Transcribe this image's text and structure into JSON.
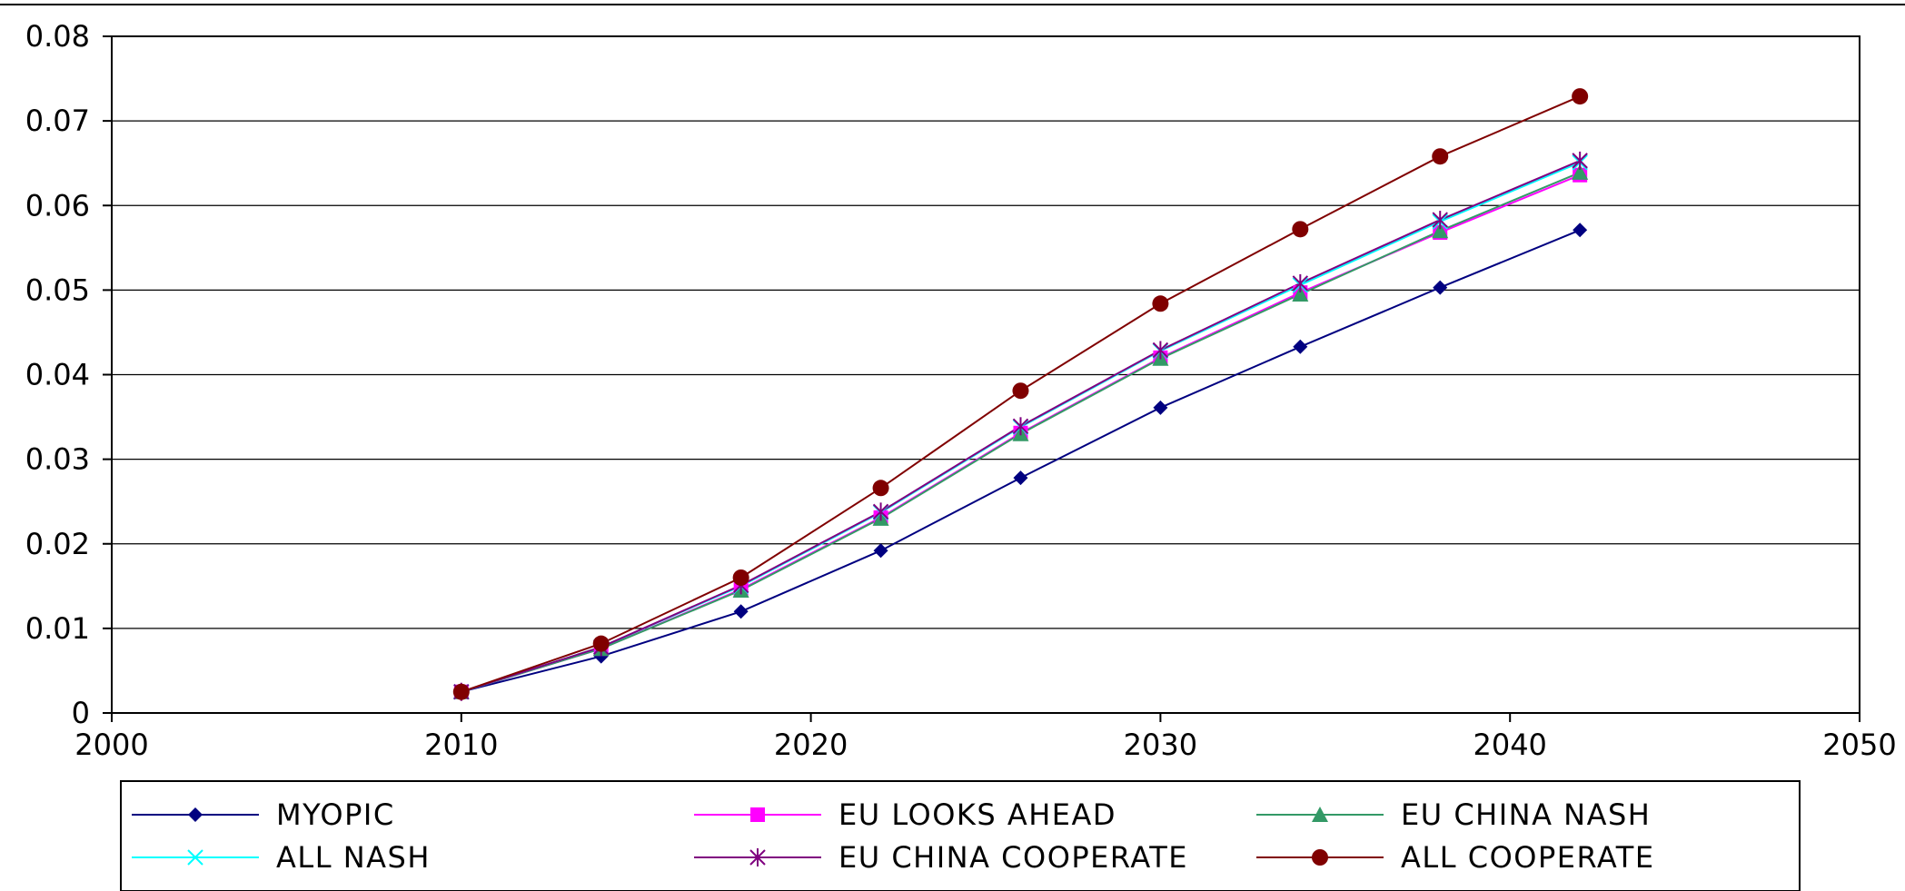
{
  "chart_data": {
    "type": "line",
    "title": "",
    "xlabel": "",
    "ylabel": "",
    "xlim": [
      2000,
      2050
    ],
    "ylim": [
      0,
      0.08
    ],
    "x_ticks": [
      2000,
      2010,
      2020,
      2030,
      2040,
      2050
    ],
    "y_ticks": [
      0,
      0.01,
      0.02,
      0.03,
      0.04,
      0.05,
      0.06,
      0.07,
      0.08
    ],
    "x_tick_labels": [
      "2000",
      "2010",
      "2020",
      "2030",
      "2040",
      "2050"
    ],
    "y_tick_labels": [
      "0",
      "0.01",
      "0.02",
      "0.03",
      "0.04",
      "0.05",
      "0.06",
      "0.07",
      "0.08"
    ],
    "grid": "horizontal major lines",
    "legend_position": "bottom",
    "x": [
      2010,
      2014,
      2018,
      2022,
      2026,
      2030,
      2034,
      2038,
      2042
    ],
    "series": [
      {
        "name": "MYOPIC",
        "color": "#000080",
        "marker": "diamond",
        "values": [
          0.0025,
          0.0067,
          0.012,
          0.0192,
          0.0278,
          0.0361,
          0.0433,
          0.0503,
          0.0571
        ]
      },
      {
        "name": "EU LOOKS AHEAD",
        "color": "#FF00FF",
        "marker": "square",
        "values": [
          0.0025,
          0.0076,
          0.0146,
          0.0231,
          0.0331,
          0.042,
          0.0497,
          0.0568,
          0.0636
        ]
      },
      {
        "name": "EU CHINA NASH",
        "color": "#339966",
        "marker": "triangle",
        "values": [
          0.0025,
          0.0076,
          0.0145,
          0.023,
          0.033,
          0.0419,
          0.0495,
          0.057,
          0.0639
        ]
      },
      {
        "name": "ALL NASH",
        "color": "#00FFFF",
        "marker": "x",
        "values": [
          0.0025,
          0.0078,
          0.015,
          0.0237,
          0.0338,
          0.0428,
          0.0506,
          0.0581,
          0.0651
        ]
      },
      {
        "name": "EU CHINA COOPERATE",
        "color": "#800080",
        "marker": "star",
        "values": [
          0.0025,
          0.0078,
          0.0151,
          0.0238,
          0.0339,
          0.0429,
          0.0508,
          0.0583,
          0.0653
        ]
      },
      {
        "name": "ALL COOPERATE",
        "color": "#800000",
        "marker": "circle",
        "values": [
          0.0025,
          0.0082,
          0.016,
          0.0266,
          0.0381,
          0.0484,
          0.0572,
          0.0658,
          0.0729
        ]
      }
    ]
  }
}
